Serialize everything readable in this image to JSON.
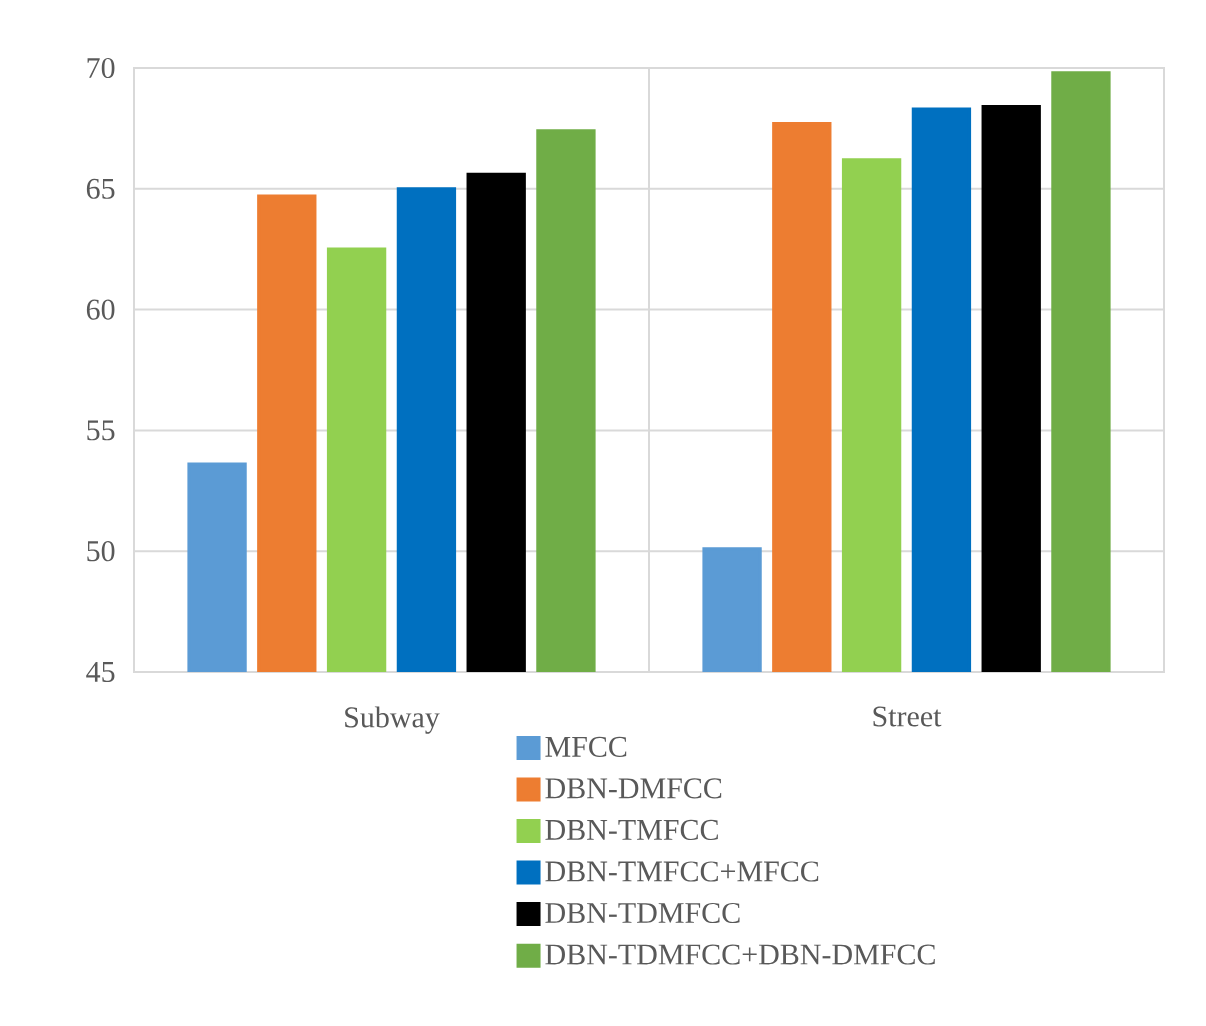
{
  "chart_data": {
    "type": "bar",
    "categories": [
      "Subway",
      "Street"
    ],
    "series": [
      {
        "name": "MFCC",
        "color": "#5b9bd5",
        "values": [
          53.6,
          50.1
        ]
      },
      {
        "name": "DBN-DMFCC",
        "color": "#ed7d31",
        "values": [
          64.7,
          67.7
        ]
      },
      {
        "name": "DBN-TMFCC",
        "color": "#92d050",
        "values": [
          62.5,
          66.2
        ]
      },
      {
        "name": "DBN-TMFCC+MFCC",
        "color": "#0070c0",
        "values": [
          65.0,
          68.3
        ]
      },
      {
        "name": "DBN-TDMFCC",
        "color": "#000000",
        "values": [
          65.6,
          68.4
        ]
      },
      {
        "name": "DBN-TDMFCC+DBN-DMFCC",
        "color": "#70ad47",
        "values": [
          67.4,
          69.8
        ]
      }
    ],
    "ylim": [
      45,
      70
    ],
    "yticks": [
      45,
      50,
      55,
      60,
      65,
      70
    ],
    "grid": true,
    "legend": "bottom"
  }
}
